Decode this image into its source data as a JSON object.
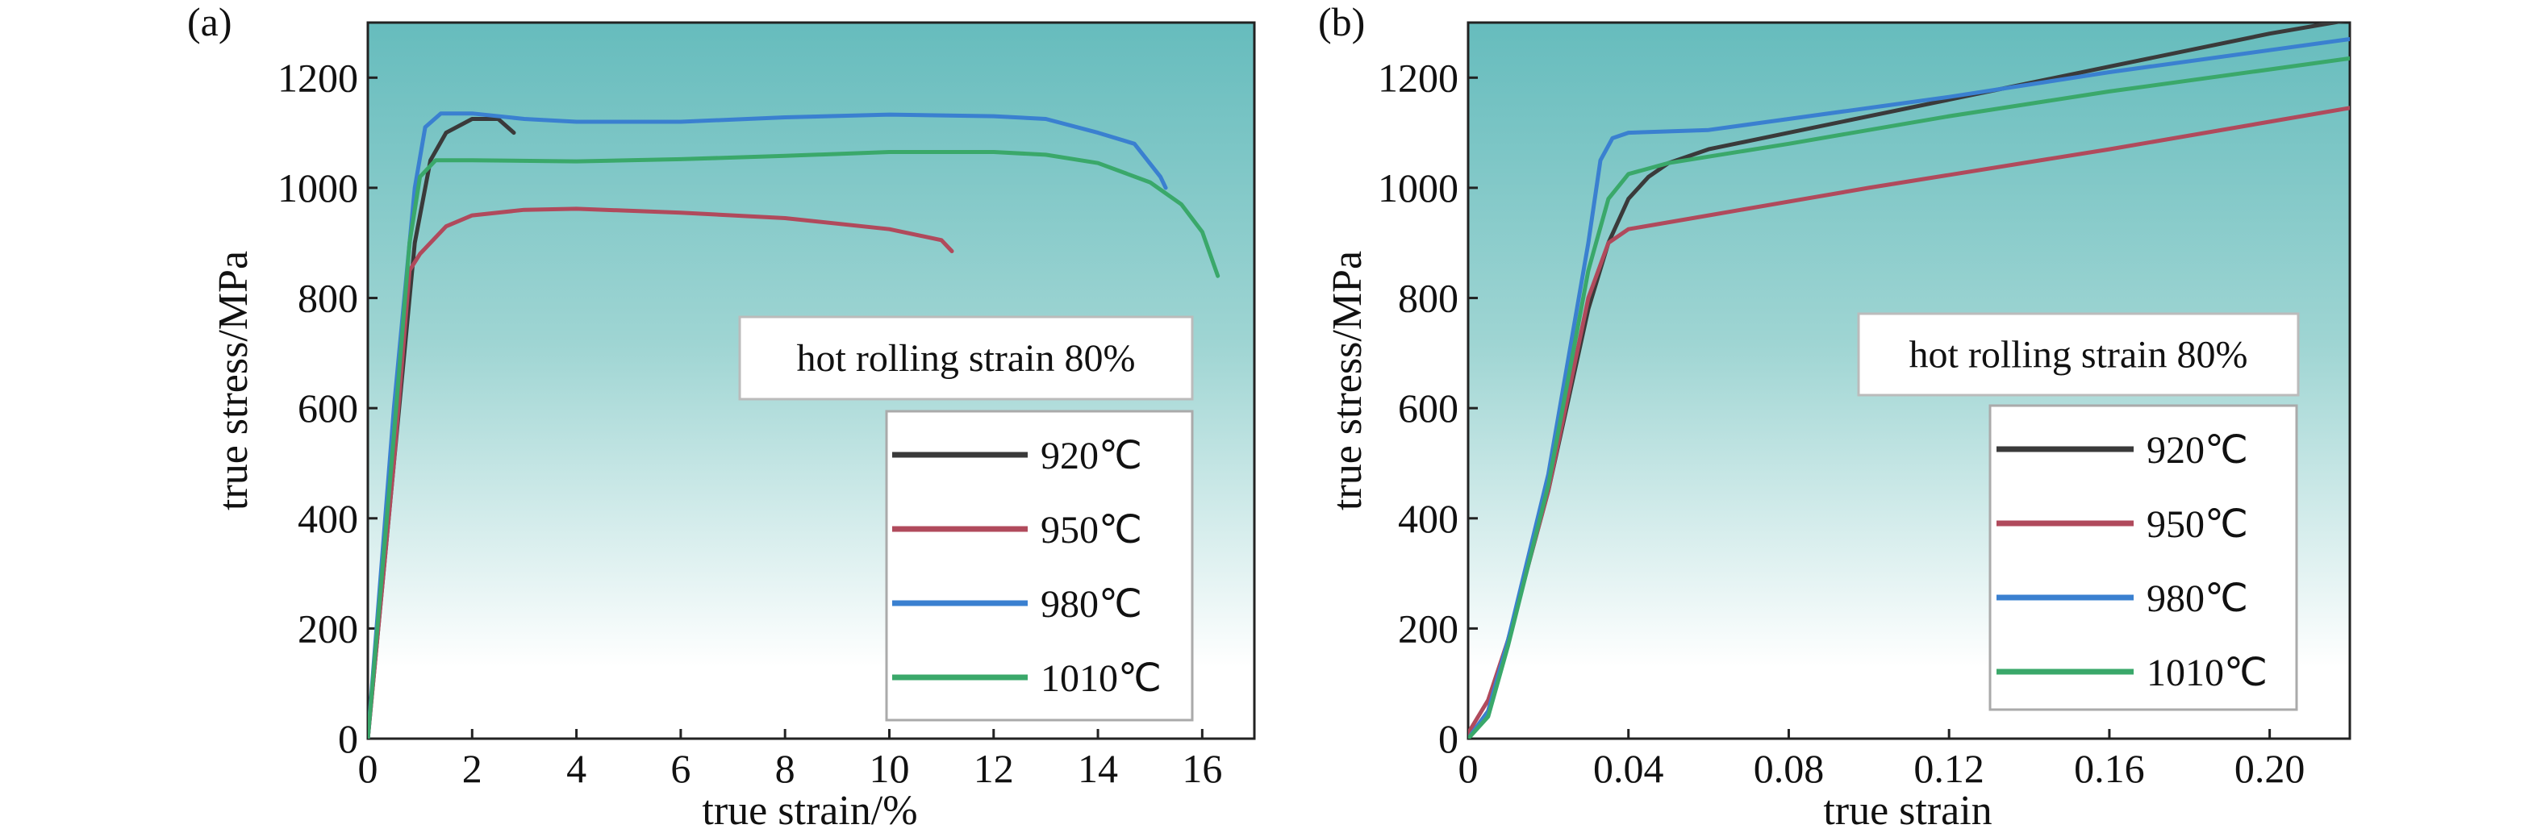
{
  "chart_data": [
    {
      "type": "line",
      "panel_label": "(a)",
      "xlabel": "true strain/%",
      "ylabel": "true stress/MPa",
      "xlim": [
        0,
        17
      ],
      "ylim": [
        0,
        1300
      ],
      "xticks": [
        0,
        2,
        4,
        6,
        8,
        10,
        12,
        14,
        16
      ],
      "yticks": [
        0,
        200,
        400,
        600,
        800,
        1000,
        1200
      ],
      "annotation": "hot rolling strain 80%",
      "legend_position": "lower-right",
      "series": [
        {
          "name": "920℃",
          "color": "#3a3a3a",
          "x": [
            0,
            0.5,
            0.9,
            1.2,
            1.5,
            2,
            2.5,
            2.8
          ],
          "y": [
            0,
            500,
            900,
            1050,
            1100,
            1125,
            1125,
            1100
          ]
        },
        {
          "name": "950℃",
          "color": "#b04a5c",
          "x": [
            0,
            0.5,
            0.8,
            1.0,
            1.5,
            2,
            3,
            4,
            6,
            8,
            10,
            11,
            11.2
          ],
          "y": [
            0,
            500,
            850,
            880,
            930,
            950,
            960,
            962,
            955,
            945,
            925,
            905,
            885
          ]
        },
        {
          "name": "980℃",
          "color": "#3a80d0",
          "x": [
            0,
            0.5,
            0.9,
            1.1,
            1.4,
            2,
            3,
            4,
            6,
            8,
            10,
            12,
            13,
            14,
            14.7,
            15.2,
            15.3
          ],
          "y": [
            0,
            600,
            1000,
            1110,
            1135,
            1135,
            1125,
            1120,
            1120,
            1128,
            1133,
            1130,
            1125,
            1100,
            1080,
            1020,
            1000
          ]
        },
        {
          "name": "1010℃",
          "color": "#3aa86a",
          "x": [
            0,
            0.5,
            0.8,
            1.0,
            1.3,
            2,
            4,
            6,
            8,
            10,
            12,
            13,
            14,
            15,
            15.6,
            16,
            16.3
          ],
          "y": [
            0,
            550,
            900,
            1020,
            1050,
            1050,
            1048,
            1052,
            1058,
            1065,
            1065,
            1060,
            1045,
            1010,
            970,
            920,
            840
          ]
        }
      ]
    },
    {
      "type": "line",
      "panel_label": "(b)",
      "xlabel": "true strain",
      "ylabel": "true stress/MPa",
      "xlim": [
        0,
        0.22
      ],
      "ylim": [
        0,
        1300
      ],
      "xticks": [
        "0",
        "0.04",
        "0.08",
        "0.12",
        "0.16",
        "0.20"
      ],
      "yticks": [
        0,
        200,
        400,
        600,
        800,
        1000,
        1200
      ],
      "annotation": "hot rolling strain 80%",
      "legend_position": "lower-right",
      "series": [
        {
          "name": "920℃",
          "color": "#3a3a3a",
          "x": [
            0,
            0.005,
            0.01,
            0.02,
            0.03,
            0.035,
            0.04,
            0.045,
            0.05,
            0.06,
            0.08,
            0.12,
            0.16,
            0.2,
            0.22
          ],
          "y": [
            0,
            50,
            180,
            450,
            780,
            900,
            980,
            1020,
            1045,
            1070,
            1100,
            1160,
            1220,
            1280,
            1305
          ]
        },
        {
          "name": "950℃",
          "color": "#b04a5c",
          "x": [
            0,
            0.005,
            0.01,
            0.02,
            0.03,
            0.035,
            0.04,
            0.06,
            0.1,
            0.16,
            0.22
          ],
          "y": [
            10,
            70,
            180,
            450,
            800,
            900,
            925,
            950,
            1000,
            1070,
            1145
          ]
        },
        {
          "name": "980℃",
          "color": "#3a80d0",
          "x": [
            0,
            0.005,
            0.01,
            0.02,
            0.03,
            0.033,
            0.036,
            0.04,
            0.06,
            0.08,
            0.12,
            0.16,
            0.2,
            0.22
          ],
          "y": [
            0,
            50,
            180,
            480,
            900,
            1050,
            1090,
            1100,
            1105,
            1125,
            1165,
            1210,
            1250,
            1270
          ]
        },
        {
          "name": "1010℃",
          "color": "#3aa86a",
          "x": [
            0,
            0.005,
            0.01,
            0.02,
            0.03,
            0.035,
            0.04,
            0.05,
            0.08,
            0.12,
            0.16,
            0.2,
            0.22
          ],
          "y": [
            0,
            40,
            170,
            460,
            850,
            980,
            1025,
            1045,
            1080,
            1130,
            1175,
            1215,
            1235
          ]
        }
      ]
    }
  ]
}
